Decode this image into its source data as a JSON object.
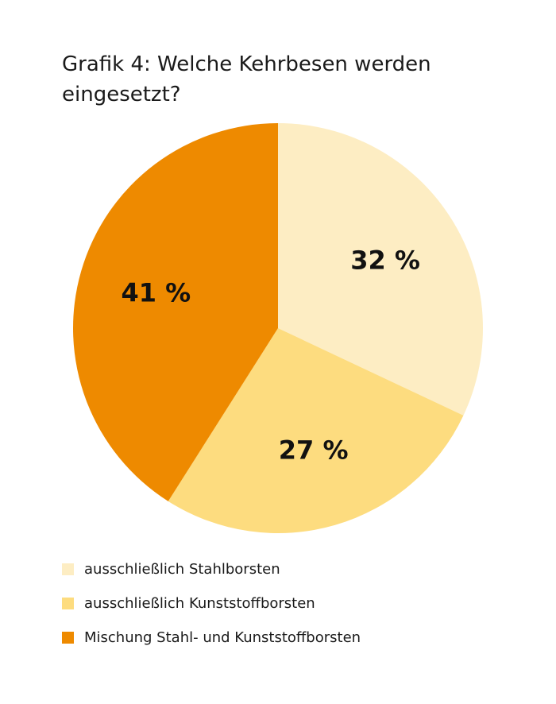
{
  "chart_data": {
    "type": "pie",
    "title": "Grafik 4: Welche Kehrbesen werden eingesetzt?",
    "slices": [
      {
        "label": "ausschließlich Stahlborsten",
        "value": 32,
        "value_label": "32 %",
        "color": "#fdedc3"
      },
      {
        "label": "ausschließlich Kunststoffborsten",
        "value": 27,
        "value_label": "27 %",
        "color": "#fddc7f"
      },
      {
        "label": "Mischung Stahl- und Kunststoffborsten",
        "value": 41,
        "value_label": "41 %",
        "color": "#ee8a00"
      }
    ],
    "start": "12 o'clock",
    "direction": "clockwise",
    "legend_position": "bottom-left"
  }
}
